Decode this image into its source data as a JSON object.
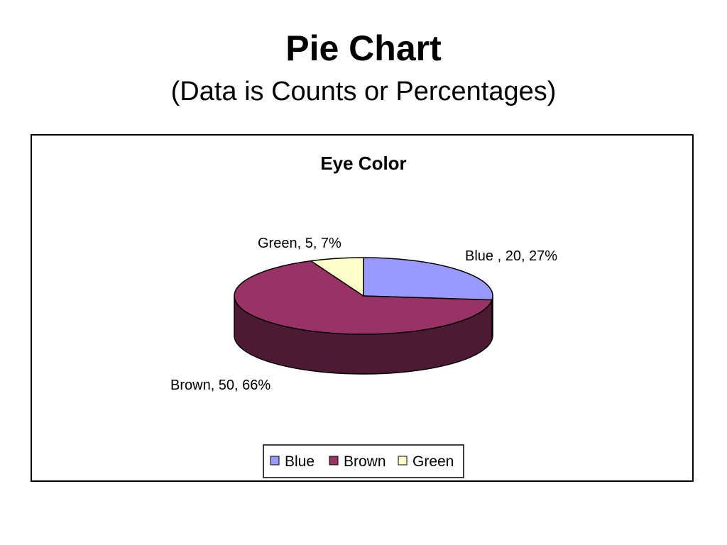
{
  "slide": {
    "title": "Pie Chart",
    "subtitle": "(Data is Counts or Percentages)"
  },
  "chart_data": {
    "type": "pie",
    "style": "3d",
    "title": "Eye Color",
    "categories": [
      "Blue",
      "Brown",
      "Green"
    ],
    "values": [
      20,
      50,
      5
    ],
    "percentages": [
      27,
      66,
      7
    ],
    "data_labels": [
      "Blue , 20, 27%",
      "Brown, 50, 66%",
      "Green, 5, 7%"
    ],
    "colors": [
      "#9999ff",
      "#993366",
      "#ffffcc"
    ],
    "side_colors": [
      "#5c5c99",
      "#4d1a33",
      "#99997a"
    ],
    "legend": {
      "placement": "bottom",
      "entries": [
        "Blue",
        "Brown",
        "Green"
      ]
    }
  }
}
